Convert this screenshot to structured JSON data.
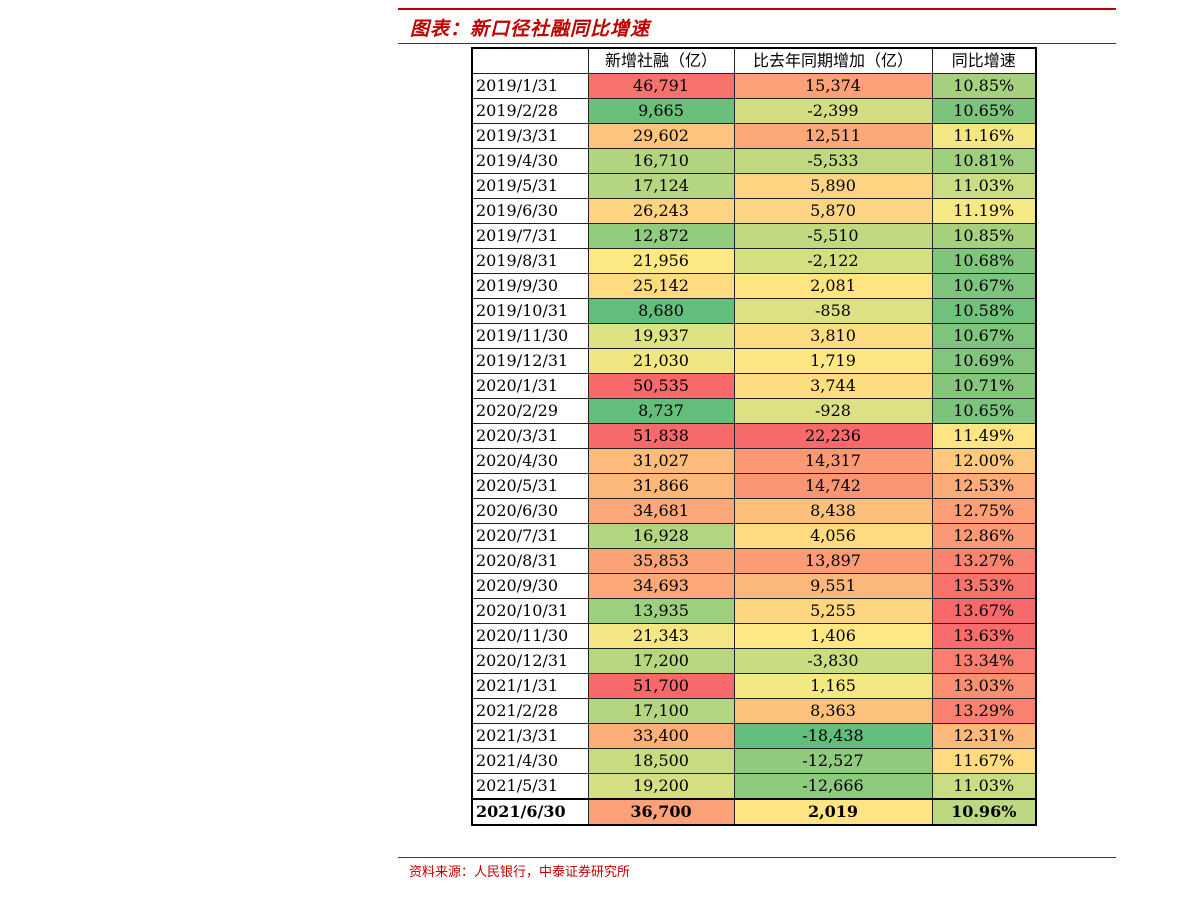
{
  "title": "图表：新口径社融同比增速",
  "source": "资料来源：人民银行，中泰证券研究所",
  "table": {
    "headers": [
      "",
      "新增社融（亿）",
      "比去年同期增加（亿）",
      "同比增速"
    ],
    "rows": [
      {
        "date": "2019/1/31",
        "a": "46,791",
        "b": "15,374",
        "c": "10.85%",
        "ca": "#f8726d",
        "cb": "#fba077",
        "cc": "#a5d17f"
      },
      {
        "date": "2019/2/28",
        "a": "9,665",
        "b": "-2,399",
        "c": "10.65%",
        "ca": "#6abf7b",
        "cb": "#d3de82",
        "cc": "#7cc47c"
      },
      {
        "date": "2019/3/31",
        "a": "29,602",
        "b": "12,511",
        "c": "11.16%",
        "ca": "#fdc47d",
        "cb": "#fba977",
        "cc": "#f3e784"
      },
      {
        "date": "2019/4/30",
        "a": "16,710",
        "b": "-5,533",
        "c": "10.81%",
        "ca": "#b0d47f",
        "cb": "#c0d980",
        "cc": "#9dcf7e"
      },
      {
        "date": "2019/5/31",
        "a": "17,124",
        "b": "5,890",
        "c": "11.03%",
        "ca": "#b5d680",
        "cb": "#fdd481",
        "cc": "#cadd82"
      },
      {
        "date": "2019/6/30",
        "a": "26,243",
        "b": "5,870",
        "c": "11.19%",
        "ca": "#fed480",
        "cb": "#fdd481",
        "cc": "#f6e883"
      },
      {
        "date": "2019/7/31",
        "a": "12,872",
        "b": "-5,510",
        "c": "10.85%",
        "ca": "#91cb7e",
        "cb": "#c0d980",
        "cc": "#a5d17f"
      },
      {
        "date": "2019/8/31",
        "a": "21,956",
        "b": "-2,122",
        "c": "10.68%",
        "ca": "#fde983",
        "cb": "#d4df82",
        "cc": "#80c57c"
      },
      {
        "date": "2019/9/30",
        "a": "25,142",
        "b": "2,081",
        "c": "10.67%",
        "ca": "#feda80",
        "cb": "#fee482",
        "cc": "#7ec47c"
      },
      {
        "date": "2019/10/31",
        "a": "8,680",
        "b": "-858",
        "c": "10.58%",
        "ca": "#63be7b",
        "cb": "#dde183",
        "cc": "#70c17b"
      },
      {
        "date": "2019/11/30",
        "a": "19,937",
        "b": "3,810",
        "c": "10.67%",
        "ca": "#dde283",
        "cb": "#fedc81",
        "cc": "#7ec47c"
      },
      {
        "date": "2019/12/31",
        "a": "21,030",
        "b": "1,719",
        "c": "10.69%",
        "ca": "#f0e683",
        "cb": "#fee683",
        "cc": "#82c57c"
      },
      {
        "date": "2020/1/31",
        "a": "50,535",
        "b": "3,744",
        "c": "10.71%",
        "ca": "#f8696b",
        "cb": "#fedd81",
        "cc": "#86c67c"
      },
      {
        "date": "2020/2/29",
        "a": "8,737",
        "b": "-928",
        "c": "10.65%",
        "ca": "#64be7b",
        "cb": "#dde183",
        "cc": "#7cc47c"
      },
      {
        "date": "2020/3/31",
        "a": "51,838",
        "b": "22,236",
        "c": "11.49%",
        "ca": "#f8696b",
        "cb": "#f8696b",
        "cc": "#fee483"
      },
      {
        "date": "2020/4/30",
        "a": "31,027",
        "b": "14,317",
        "c": "12.00%",
        "ca": "#fdbb7b",
        "cb": "#fa9974",
        "cc": "#fec97e"
      },
      {
        "date": "2020/5/31",
        "a": "31,866",
        "b": "14,742",
        "c": "12.53%",
        "ca": "#fcb77a",
        "cb": "#fa9573",
        "cc": "#fcab79"
      },
      {
        "date": "2020/6/30",
        "a": "34,681",
        "b": "8,438",
        "c": "12.75%",
        "ca": "#fca878",
        "cb": "#fcc07c",
        "cc": "#fc9e76"
      },
      {
        "date": "2020/7/31",
        "a": "16,928",
        "b": "4,056",
        "c": "12.86%",
        "ca": "#b2d57f",
        "cb": "#fedb81",
        "cc": "#fb9875"
      },
      {
        "date": "2020/8/31",
        "a": "35,853",
        "b": "13,897",
        "c": "13.27%",
        "ca": "#fba277",
        "cb": "#fb9c75",
        "cc": "#f98270"
      },
      {
        "date": "2020/9/30",
        "a": "34,693",
        "b": "9,551",
        "c": "13.53%",
        "ca": "#fca878",
        "cb": "#fcb87a",
        "cc": "#f8736d"
      },
      {
        "date": "2020/10/31",
        "a": "13,935",
        "b": "5,255",
        "c": "13.67%",
        "ca": "#9ccf7e",
        "cb": "#fed680",
        "cc": "#f8696b"
      },
      {
        "date": "2020/11/30",
        "a": "21,343",
        "b": "1,406",
        "c": "13.63%",
        "ca": "#f4e783",
        "cb": "#fee883",
        "cc": "#f86c6c"
      },
      {
        "date": "2020/12/31",
        "a": "17,200",
        "b": "-3,830",
        "c": "13.34%",
        "ca": "#b6d680",
        "cb": "#c9dc81",
        "cc": "#f97e6f"
      },
      {
        "date": "2021/1/31",
        "a": "51,700",
        "b": "1,165",
        "c": "13.03%",
        "ca": "#f8696b",
        "cb": "#f4e883",
        "cc": "#fa8f73"
      },
      {
        "date": "2021/2/28",
        "a": "17,100",
        "b": "8,363",
        "c": "13.29%",
        "ca": "#b5d680",
        "cb": "#fcc17c",
        "cc": "#f9816f"
      },
      {
        "date": "2021/3/31",
        "a": "33,400",
        "b": "-18,438",
        "c": "12.31%",
        "ca": "#fcae79",
        "cb": "#63be7b",
        "cc": "#fdb87b"
      },
      {
        "date": "2021/4/30",
        "a": "18,500",
        "b": "-12,527",
        "c": "11.67%",
        "ca": "#c8db81",
        "cb": "#8fca7e",
        "cc": "#fedb81"
      },
      {
        "date": "2021/5/31",
        "a": "19,200",
        "b": "-12,666",
        "c": "11.03%",
        "ca": "#d5df82",
        "cb": "#8dca7e",
        "cc": "#cadd82"
      },
      {
        "date": "2021/6/30",
        "a": "36,700",
        "b": "2,019",
        "c": "10.96%",
        "ca": "#fca077",
        "cb": "#fee482",
        "cc": "#bcd880"
      }
    ]
  }
}
